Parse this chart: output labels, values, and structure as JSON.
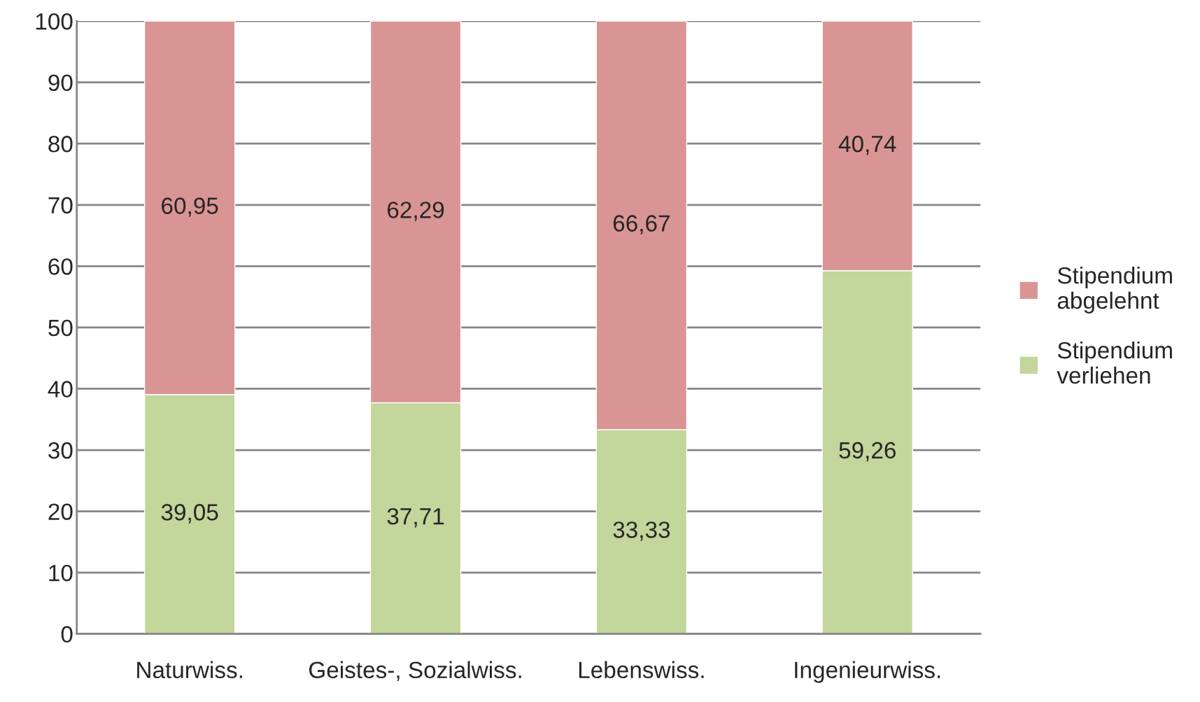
{
  "chart_data": {
    "type": "bar",
    "stacked": true,
    "categories": [
      "Naturwiss.",
      "Geistes-, Sozialwiss.",
      "Lebenswiss.",
      "Ingenieurwiss."
    ],
    "series": [
      {
        "name": "Stipendium verliehen",
        "color": "#c3d69b",
        "values": [
          39.05,
          37.71,
          33.33,
          59.26
        ],
        "value_labels": [
          "39,05",
          "37,71",
          "33,33",
          "59,26"
        ]
      },
      {
        "name": "Stipendium abgelehnt",
        "color": "#d99594",
        "values": [
          60.95,
          62.29,
          66.67,
          40.74
        ],
        "value_labels": [
          "60,95",
          "62,29",
          "66,67",
          "40,74"
        ]
      }
    ],
    "ylim": [
      0,
      100
    ],
    "yticks": [
      0,
      10,
      20,
      30,
      40,
      50,
      60,
      70,
      80,
      90,
      100
    ],
    "grid": "y",
    "legend": "right"
  }
}
